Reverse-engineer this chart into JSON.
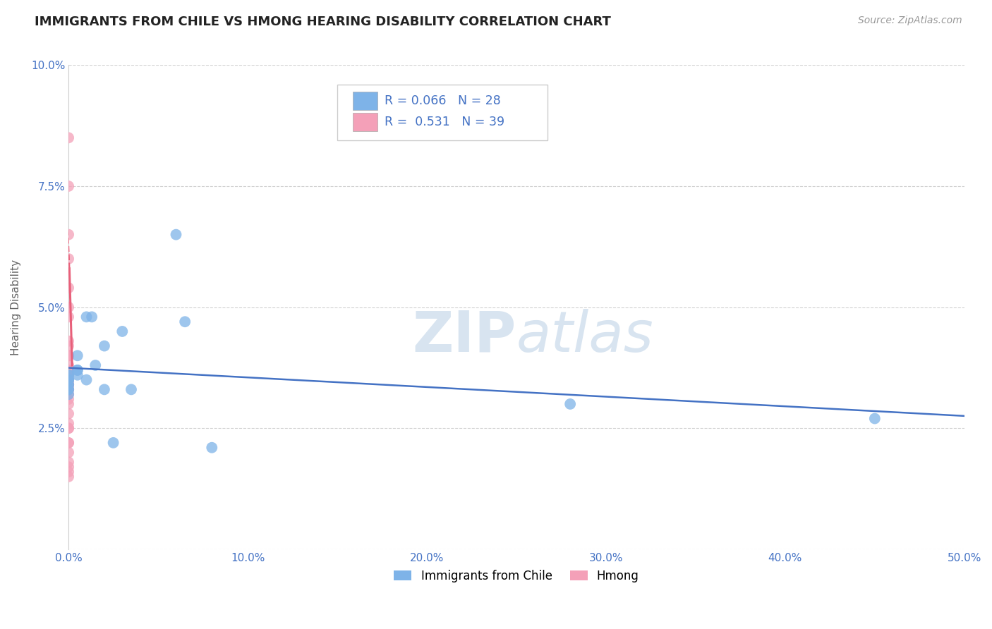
{
  "title": "IMMIGRANTS FROM CHILE VS HMONG HEARING DISABILITY CORRELATION CHART",
  "source": "Source: ZipAtlas.com",
  "ylabel": "Hearing Disability",
  "xlim": [
    0.0,
    0.5
  ],
  "ylim": [
    0.0,
    0.1
  ],
  "xticks": [
    0.0,
    0.1,
    0.2,
    0.3,
    0.4,
    0.5
  ],
  "yticks": [
    0.0,
    0.025,
    0.05,
    0.075,
    0.1
  ],
  "ytick_labels": [
    "",
    "2.5%",
    "5.0%",
    "7.5%",
    "10.0%"
  ],
  "xtick_labels": [
    "0.0%",
    "10.0%",
    "20.0%",
    "30.0%",
    "40.0%",
    "50.0%"
  ],
  "chile_color": "#7EB3E8",
  "hmong_color": "#F4A0B8",
  "chile_line_color": "#4472c4",
  "hmong_line_color": "#E8607A",
  "chile_R": 0.066,
  "chile_N": 28,
  "hmong_R": 0.531,
  "hmong_N": 39,
  "chile_points_x": [
    0.0,
    0.0,
    0.0,
    0.0,
    0.0,
    0.0,
    0.0,
    0.0,
    0.0,
    0.0,
    0.005,
    0.005,
    0.005,
    0.005,
    0.01,
    0.01,
    0.013,
    0.015,
    0.02,
    0.02,
    0.025,
    0.03,
    0.035,
    0.06,
    0.065,
    0.08,
    0.28,
    0.45
  ],
  "chile_points_y": [
    0.032,
    0.033,
    0.033,
    0.034,
    0.034,
    0.035,
    0.035,
    0.035,
    0.036,
    0.036,
    0.036,
    0.037,
    0.037,
    0.04,
    0.035,
    0.048,
    0.048,
    0.038,
    0.033,
    0.042,
    0.022,
    0.045,
    0.033,
    0.065,
    0.047,
    0.021,
    0.03,
    0.027
  ],
  "hmong_points_x": [
    0.0,
    0.0,
    0.0,
    0.0,
    0.0,
    0.0,
    0.0,
    0.0,
    0.0,
    0.0,
    0.0,
    0.0,
    0.0,
    0.0,
    0.0,
    0.0,
    0.0,
    0.0,
    0.0,
    0.0,
    0.0,
    0.0,
    0.0,
    0.0,
    0.0,
    0.0,
    0.0,
    0.0,
    0.0,
    0.0,
    0.0,
    0.0,
    0.0,
    0.0,
    0.0,
    0.0,
    0.0,
    0.0,
    0.0
  ],
  "hmong_points_y": [
    0.015,
    0.016,
    0.017,
    0.018,
    0.02,
    0.022,
    0.022,
    0.025,
    0.025,
    0.026,
    0.028,
    0.03,
    0.031,
    0.032,
    0.033,
    0.033,
    0.034,
    0.034,
    0.034,
    0.035,
    0.035,
    0.035,
    0.036,
    0.036,
    0.036,
    0.037,
    0.037,
    0.038,
    0.04,
    0.04,
    0.042,
    0.043,
    0.048,
    0.05,
    0.054,
    0.06,
    0.065,
    0.075,
    0.085
  ],
  "background_color": "#ffffff",
  "grid_color": "#cccccc",
  "watermark_color": "#d8e4f0",
  "title_color": "#222222",
  "legend_color": "#4472c4"
}
